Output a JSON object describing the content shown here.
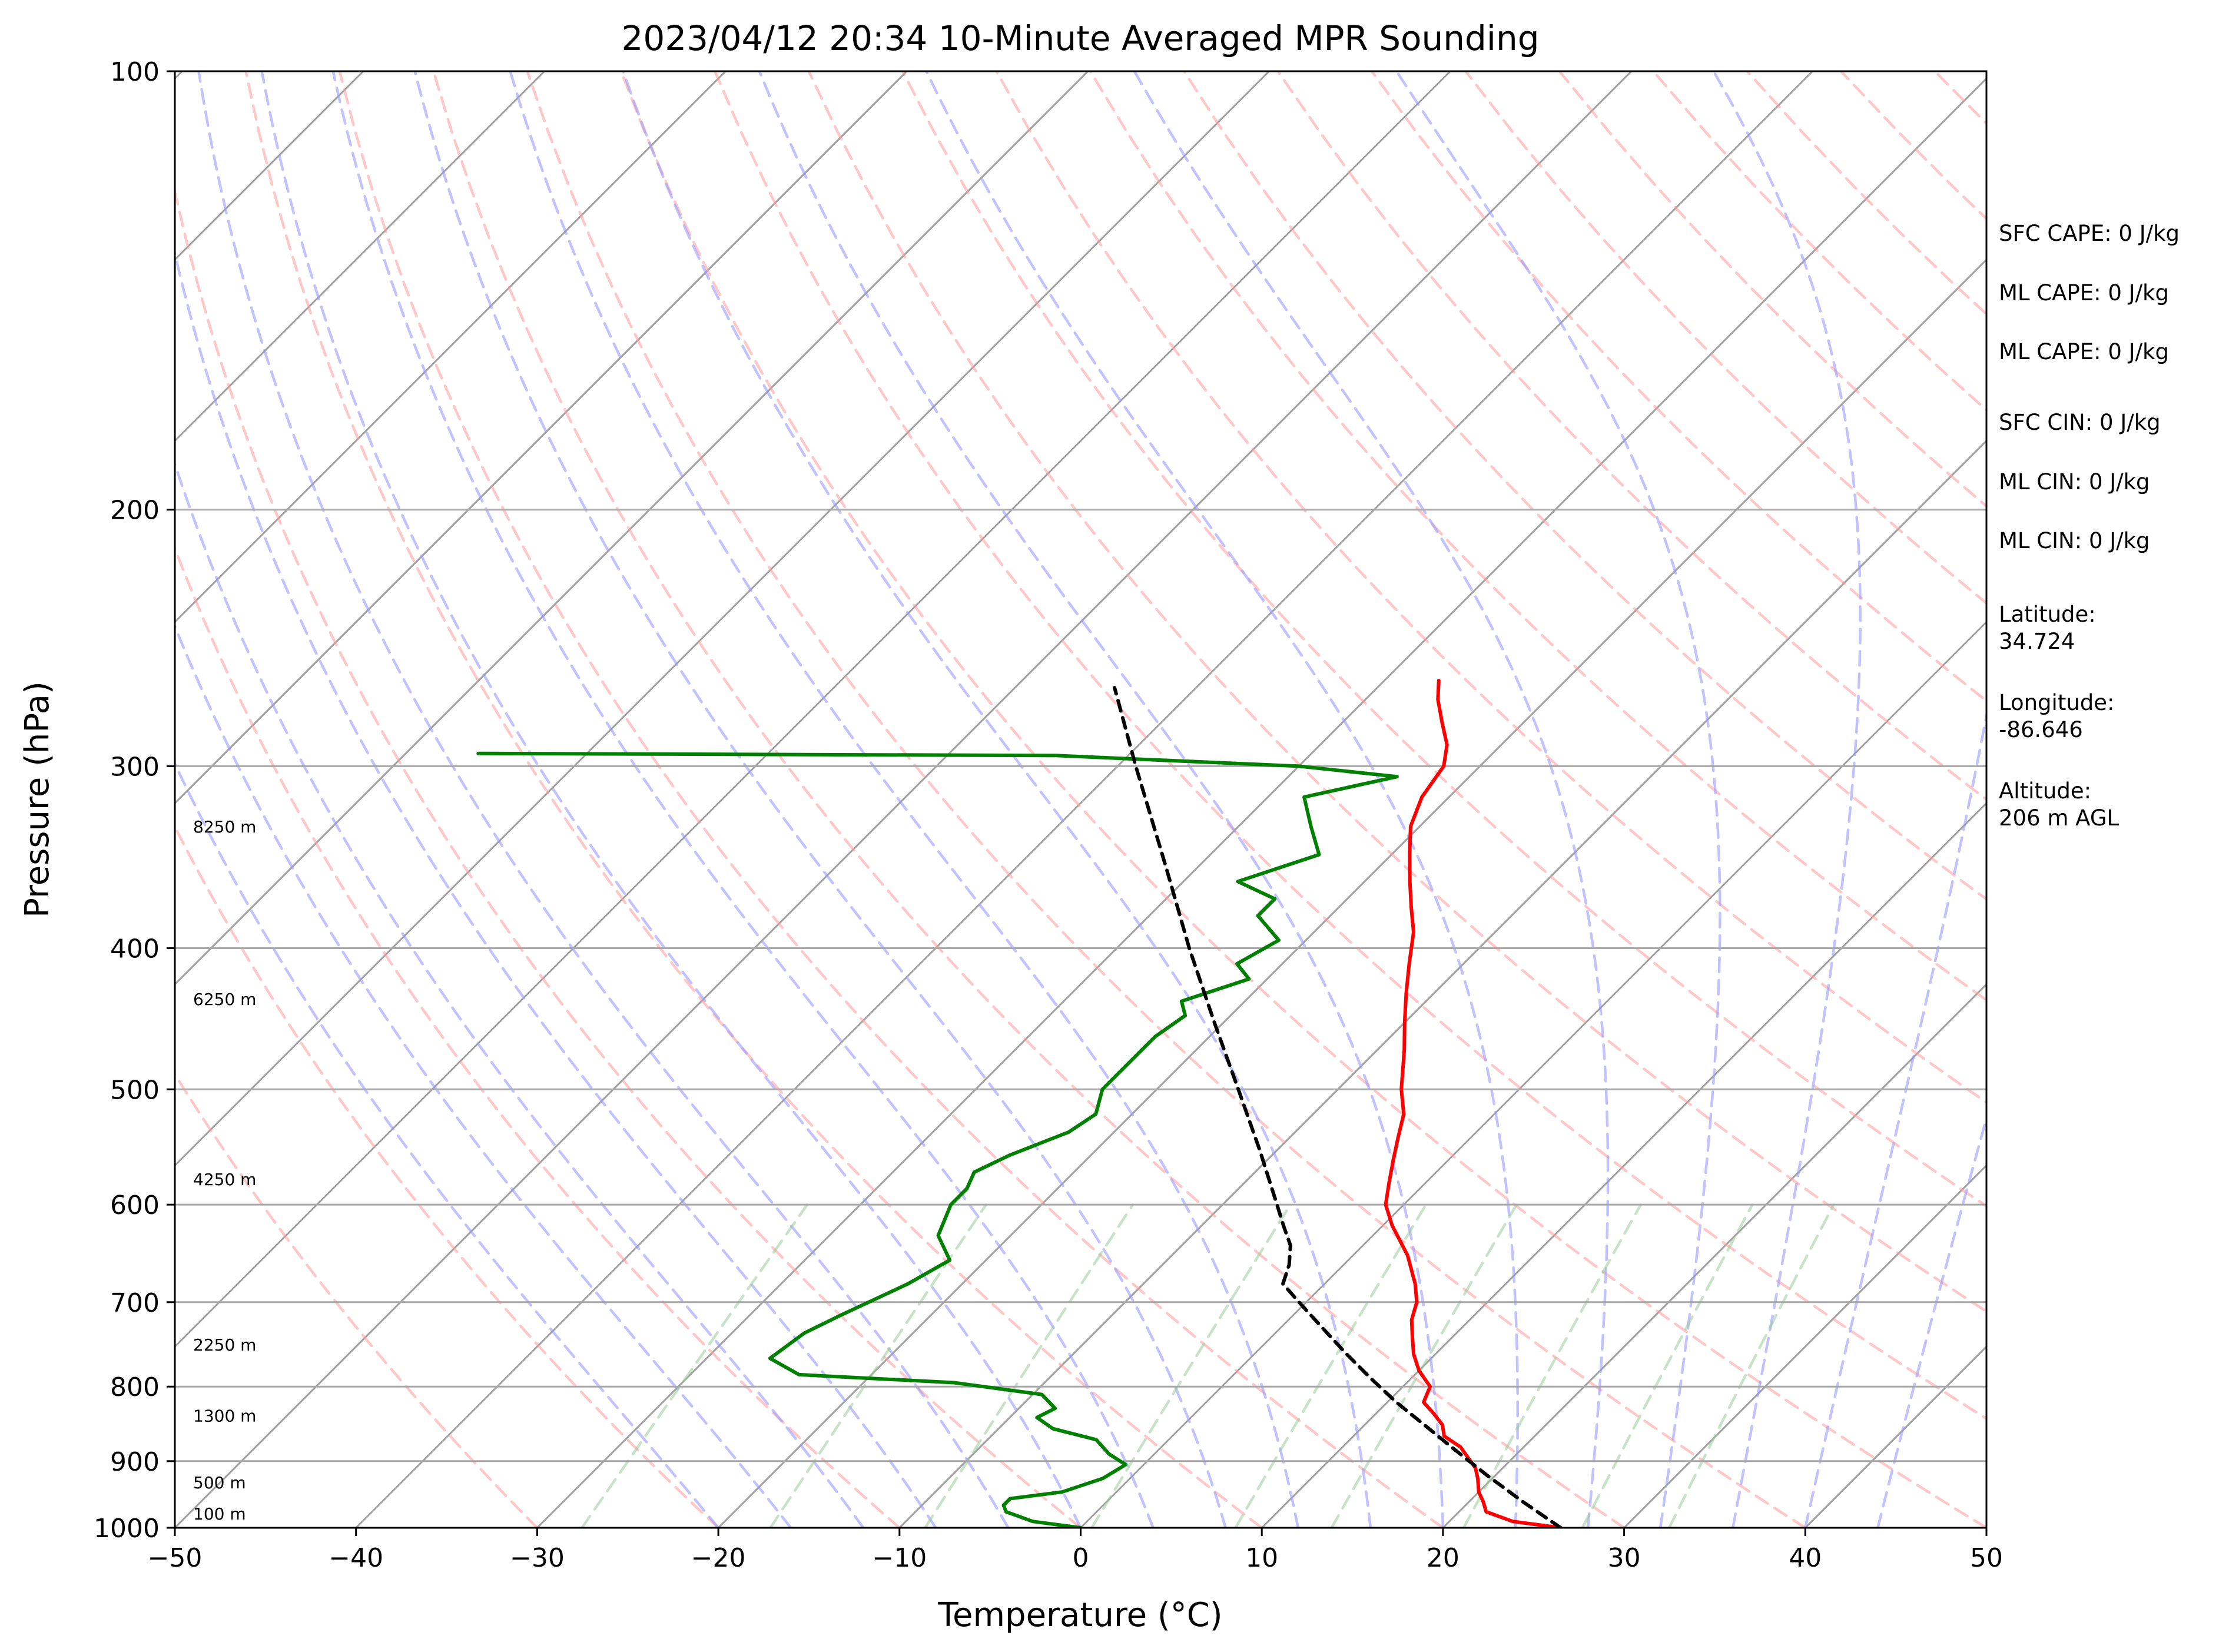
{
  "chart_data": {
    "type": "line",
    "title": "2023/04/12 20:34 10-Minute Averaged MPR Sounding",
    "xlabel": "Temperature (°C)",
    "ylabel": "Pressure (hPa)",
    "xlim": [
      -50,
      50
    ],
    "ylim": [
      1000,
      100
    ],
    "y_scale": "log",
    "skew": true,
    "x_ticks": [
      -50,
      -40,
      -30,
      -20,
      -10,
      0,
      10,
      20,
      30,
      40,
      50
    ],
    "x_tick_labels": [
      "−50",
      "−40",
      "−30",
      "−20",
      "−10",
      "0",
      "10",
      "20",
      "30",
      "40",
      "50"
    ],
    "y_ticks": [
      1000,
      900,
      800,
      700,
      600,
      500,
      400,
      300,
      200,
      100
    ],
    "y_tick_labels": [
      "1000",
      "900",
      "800",
      "700",
      "600",
      "500",
      "400",
      "300",
      "200",
      "100"
    ],
    "grid": true,
    "colors": {
      "temperature": "#ff0000",
      "dewpoint": "#008000",
      "parcel": "#000000",
      "isotherm": "#a0a0a0",
      "dry_adiabat": "#ff9999",
      "moist_adiabat": "#9999ff",
      "mixing_ratio": "#99cc99"
    },
    "series": [
      {
        "key": "temperature",
        "style": "solid",
        "points": [
          [
            1000,
            26.5
          ],
          [
            990,
            23.5
          ],
          [
            975,
            21.5
          ],
          [
            960,
            20.8
          ],
          [
            945,
            20.0
          ],
          [
            925,
            19.2
          ],
          [
            910,
            18.5
          ],
          [
            880,
            16.5
          ],
          [
            865,
            15.0
          ],
          [
            850,
            14.3
          ],
          [
            835,
            13.2
          ],
          [
            820,
            12.0
          ],
          [
            800,
            11.5
          ],
          [
            780,
            10.0
          ],
          [
            760,
            8.8
          ],
          [
            740,
            7.8
          ],
          [
            720,
            6.8
          ],
          [
            700,
            6.1
          ],
          [
            680,
            5.0
          ],
          [
            650,
            3.0
          ],
          [
            620,
            0.5
          ],
          [
            600,
            -1.0
          ],
          [
            580,
            -2.0
          ],
          [
            560,
            -3.0
          ],
          [
            540,
            -4.0
          ],
          [
            520,
            -5.0
          ],
          [
            500,
            -6.5
          ],
          [
            470,
            -8.5
          ],
          [
            450,
            -10.0
          ],
          [
            430,
            -11.5
          ],
          [
            410,
            -13.0
          ],
          [
            390,
            -14.5
          ],
          [
            375,
            -16.0
          ],
          [
            360,
            -17.5
          ],
          [
            345,
            -19.0
          ],
          [
            330,
            -20.5
          ],
          [
            315,
            -21.5
          ],
          [
            300,
            -22.0
          ],
          [
            290,
            -23.0
          ],
          [
            280,
            -24.5
          ],
          [
            270,
            -26.0
          ],
          [
            262,
            -27.0
          ]
        ]
      },
      {
        "key": "dewpoint",
        "style": "solid",
        "points": [
          [
            1000,
            0.0
          ],
          [
            990,
            -3.0
          ],
          [
            975,
            -5.0
          ],
          [
            965,
            -5.5
          ],
          [
            955,
            -5.5
          ],
          [
            945,
            -3.0
          ],
          [
            925,
            -1.5
          ],
          [
            905,
            -1.0
          ],
          [
            890,
            -2.5
          ],
          [
            870,
            -4.0
          ],
          [
            855,
            -7.0
          ],
          [
            840,
            -8.5
          ],
          [
            828,
            -8.0
          ],
          [
            810,
            -9.5
          ],
          [
            795,
            -15.0
          ],
          [
            785,
            -24.0
          ],
          [
            765,
            -26.5
          ],
          [
            735,
            -26.0
          ],
          [
            715,
            -25.0
          ],
          [
            680,
            -23.0
          ],
          [
            655,
            -22.0
          ],
          [
            630,
            -24.0
          ],
          [
            600,
            -25.0
          ],
          [
            585,
            -25.0
          ],
          [
            570,
            -25.5
          ],
          [
            555,
            -24.5
          ],
          [
            535,
            -22.5
          ],
          [
            520,
            -22.0
          ],
          [
            500,
            -23.0
          ],
          [
            480,
            -23.0
          ],
          [
            460,
            -23.0
          ],
          [
            445,
            -22.5
          ],
          [
            435,
            -23.5
          ],
          [
            420,
            -21.0
          ],
          [
            410,
            -22.5
          ],
          [
            395,
            -21.5
          ],
          [
            380,
            -24.0
          ],
          [
            370,
            -24.0
          ],
          [
            360,
            -27.0
          ],
          [
            345,
            -24.0
          ],
          [
            330,
            -26.0
          ],
          [
            315,
            -28.0
          ],
          [
            305,
            -24.0
          ],
          [
            300,
            -30.0
          ],
          [
            295,
            -44.0
          ],
          [
            294,
            -76.0
          ]
        ]
      },
      {
        "key": "parcel",
        "style": "dashed",
        "points": [
          [
            1000,
            26.5
          ],
          [
            960,
            23.0
          ],
          [
            920,
            19.5
          ],
          [
            880,
            16.0
          ],
          [
            850,
            13.3
          ],
          [
            820,
            10.5
          ],
          [
            790,
            7.8
          ],
          [
            760,
            5.1
          ],
          [
            730,
            2.4
          ],
          [
            700,
            -0.4
          ],
          [
            680,
            -2.3
          ],
          [
            660,
            -3.0
          ],
          [
            640,
            -4.0
          ],
          [
            620,
            -5.5
          ],
          [
            600,
            -7.0
          ],
          [
            550,
            -11.0
          ],
          [
            500,
            -15.5
          ],
          [
            450,
            -20.5
          ],
          [
            400,
            -26.0
          ],
          [
            350,
            -32.0
          ],
          [
            300,
            -39.0
          ],
          [
            265,
            -44.5
          ]
        ]
      }
    ],
    "height_labels": [
      {
        "pressure": 1000,
        "text": "100 m"
      },
      {
        "pressure": 945,
        "text": "500 m"
      },
      {
        "pressure": 850,
        "text": "1300 m"
      },
      {
        "pressure": 760,
        "text": "2250 m"
      },
      {
        "pressure": 585,
        "text": "4250 m"
      },
      {
        "pressure": 440,
        "text": "6250 m"
      },
      {
        "pressure": 335,
        "text": "8250 m"
      }
    ],
    "annotations": [
      {
        "text": "SFC CAPE: 0 J/kg"
      },
      {
        "text": "ML CAPE: 0 J/kg"
      },
      {
        "text": "ML CAPE: 0 J/kg"
      },
      {
        "text": "SFC CIN: 0 J/kg"
      },
      {
        "text": "ML CIN: 0 J/kg"
      },
      {
        "text": "ML CIN: 0 J/kg"
      },
      {
        "text": "Latitude:\n34.724"
      },
      {
        "text": "Longitude:\n-86.646"
      },
      {
        "text": "Altitude:\n206 m AGL"
      }
    ]
  }
}
